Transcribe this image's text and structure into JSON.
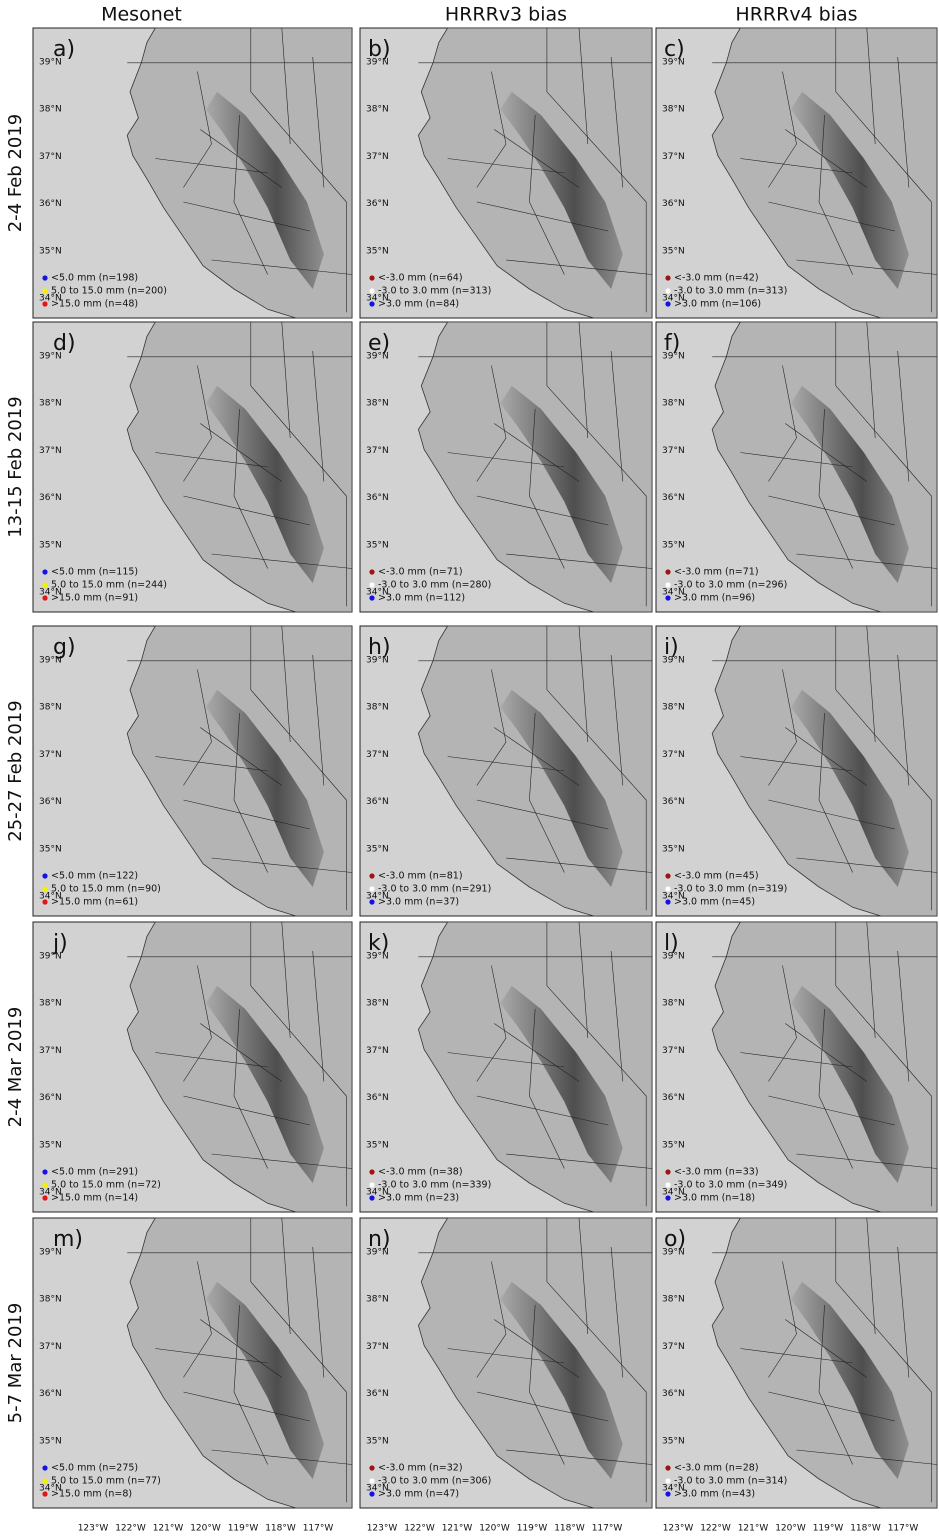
{
  "column_titles": [
    "Mesonet",
    "HRRRv3 bias",
    "HRRRv4 bias"
  ],
  "lat_ticks": [
    "39°N",
    "38°N",
    "37°N",
    "36°N",
    "35°N",
    "34°N"
  ],
  "lon_ticks": [
    "123°W",
    "122°W",
    "121°W",
    "120°W",
    "119°W",
    "118°W",
    "117°W"
  ],
  "rows": [
    {
      "title": "2-4 Feb 2019",
      "panels": [
        {
          "label": "a)",
          "legend": [
            {
              "text": "<5.0 mm (n=198)",
              "color": "#1414e6"
            },
            {
              "text": "5.0 to 15.0 mm (n=200)",
              "color": "#f2f200"
            },
            {
              "text": ">15.0 mm (n=48)",
              "color": "#e61414"
            }
          ]
        },
        {
          "label": "b)",
          "legend": [
            {
              "text": "<-3.0 mm (n=64)",
              "color": "#a01414"
            },
            {
              "text": "-3.0 to 3.0 mm (n=313)",
              "color": "#ffffff"
            },
            {
              "text": ">3.0 mm (n=84)",
              "color": "#1414e6"
            }
          ]
        },
        {
          "label": "c)",
          "legend": [
            {
              "text": "<-3.0 mm (n=42)",
              "color": "#a01414"
            },
            {
              "text": "-3.0 to 3.0 mm (n=313)",
              "color": "#ffffff"
            },
            {
              "text": ">3.0 mm (n=106)",
              "color": "#1414e6"
            }
          ]
        }
      ]
    },
    {
      "title": "13-15 Feb 2019",
      "panels": [
        {
          "label": "d)",
          "legend": [
            {
              "text": "<5.0 mm (n=115)",
              "color": "#1414e6"
            },
            {
              "text": "5.0 to 15.0 mm (n=244)",
              "color": "#f2f200"
            },
            {
              "text": ">15.0 mm (n=91)",
              "color": "#e61414"
            }
          ]
        },
        {
          "label": "e)",
          "legend": [
            {
              "text": "<-3.0 mm (n=71)",
              "color": "#a01414"
            },
            {
              "text": "-3.0 to 3.0 mm (n=280)",
              "color": "#ffffff"
            },
            {
              "text": ">3.0 mm (n=112)",
              "color": "#1414e6"
            }
          ]
        },
        {
          "label": "f)",
          "legend": [
            {
              "text": "<-3.0 mm (n=71)",
              "color": "#a01414"
            },
            {
              "text": "-3.0 to 3.0 mm (n=296)",
              "color": "#ffffff"
            },
            {
              "text": ">3.0 mm (n=96)",
              "color": "#1414e6"
            }
          ]
        }
      ]
    },
    {
      "title": "25-27 Feb 2019",
      "panels": [
        {
          "label": "g)",
          "legend": [
            {
              "text": "<5.0 mm (n=122)",
              "color": "#1414e6"
            },
            {
              "text": "5.0 to 15.0 mm (n=90)",
              "color": "#f2f200"
            },
            {
              "text": ">15.0 mm (n=61)",
              "color": "#e61414"
            }
          ]
        },
        {
          "label": "h)",
          "legend": [
            {
              "text": "<-3.0 mm (n=81)",
              "color": "#a01414"
            },
            {
              "text": "-3.0 to 3.0 mm (n=291)",
              "color": "#ffffff"
            },
            {
              "text": ">3.0 mm (n=37)",
              "color": "#1414e6"
            }
          ]
        },
        {
          "label": "i)",
          "legend": [
            {
              "text": "<-3.0 mm (n=45)",
              "color": "#a01414"
            },
            {
              "text": "-3.0 to 3.0 mm (n=319)",
              "color": "#ffffff"
            },
            {
              "text": ">3.0 mm (n=45)",
              "color": "#1414e6"
            }
          ]
        }
      ]
    },
    {
      "title": "2-4 Mar 2019",
      "panels": [
        {
          "label": "j)",
          "legend": [
            {
              "text": "<5.0 mm (n=291)",
              "color": "#1414e6"
            },
            {
              "text": "5.0 to 15.0 mm (n=72)",
              "color": "#f2f200"
            },
            {
              "text": ">15.0 mm (n=14)",
              "color": "#e61414"
            }
          ]
        },
        {
          "label": "k)",
          "legend": [
            {
              "text": "<-3.0 mm (n=38)",
              "color": "#a01414"
            },
            {
              "text": "-3.0 to 3.0 mm (n=339)",
              "color": "#ffffff"
            },
            {
              "text": ">3.0 mm (n=23)",
              "color": "#1414e6"
            }
          ]
        },
        {
          "label": "l)",
          "legend": [
            {
              "text": "<-3.0 mm (n=33)",
              "color": "#a01414"
            },
            {
              "text": "-3.0 to 3.0 mm (n=349)",
              "color": "#ffffff"
            },
            {
              "text": ">3.0 mm (n=18)",
              "color": "#1414e6"
            }
          ]
        }
      ]
    },
    {
      "title": "5-7 Mar 2019",
      "panels": [
        {
          "label": "m)",
          "legend": [
            {
              "text": "<5.0 mm (n=275)",
              "color": "#1414e6"
            },
            {
              "text": "5.0 to 15.0 mm (n=77)",
              "color": "#f2f200"
            },
            {
              "text": ">15.0 mm (n=8)",
              "color": "#e61414"
            }
          ]
        },
        {
          "label": "n)",
          "legend": [
            {
              "text": "<-3.0 mm (n=32)",
              "color": "#a01414"
            },
            {
              "text": "-3.0 to 3.0 mm (n=306)",
              "color": "#ffffff"
            },
            {
              "text": ">3.0 mm (n=47)",
              "color": "#1414e6"
            }
          ]
        },
        {
          "label": "o)",
          "legend": [
            {
              "text": "<-3.0 mm (n=28)",
              "color": "#a01414"
            },
            {
              "text": "-3.0 to 3.0 mm (n=314)",
              "color": "#ffffff"
            },
            {
              "text": ">3.0 mm (n=43)",
              "color": "#1414e6"
            }
          ]
        }
      ]
    }
  ]
}
